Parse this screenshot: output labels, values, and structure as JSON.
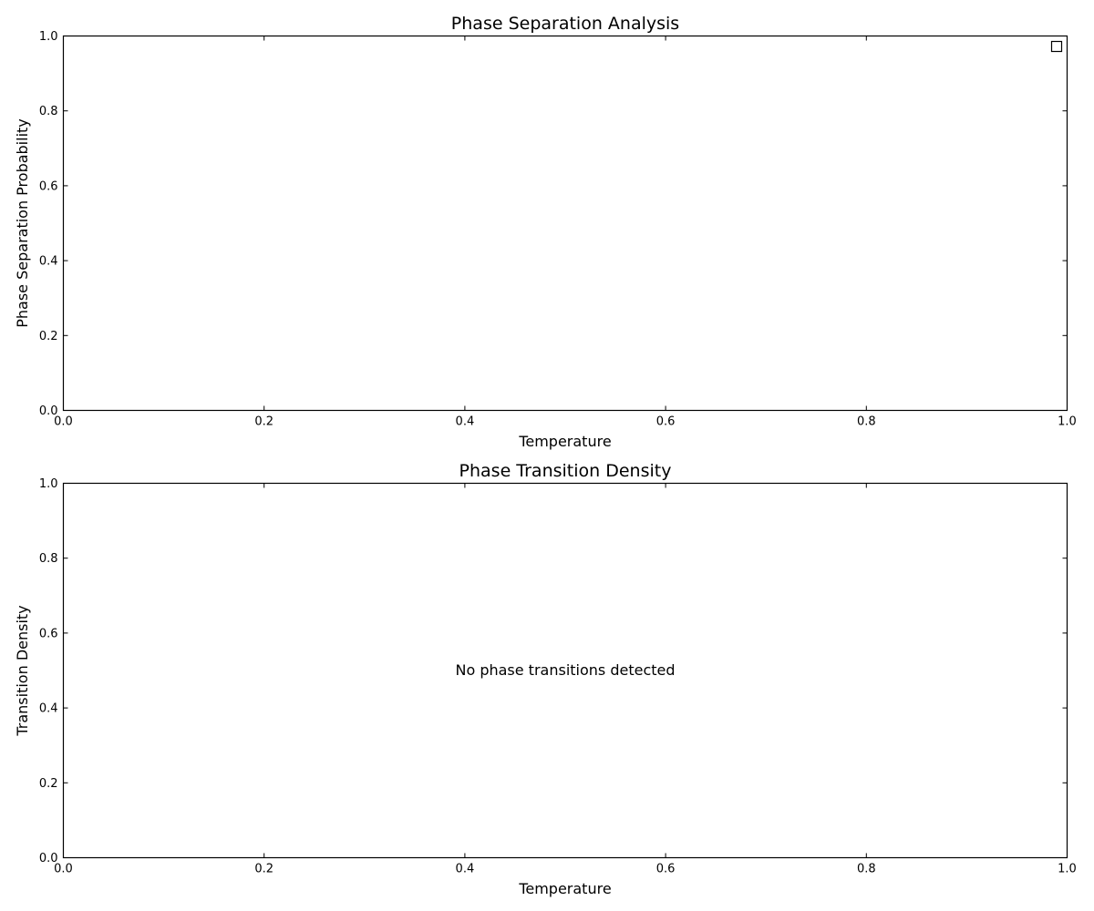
{
  "chart_data": [
    {
      "type": "line",
      "title": "Phase Separation Analysis",
      "xlabel": "Temperature",
      "ylabel": "Phase Separation Probability",
      "xlim": [
        0.0,
        1.0
      ],
      "ylim": [
        0.0,
        1.0
      ],
      "xticks": [
        0.0,
        0.2,
        0.4,
        0.6,
        0.8,
        1.0
      ],
      "yticks": [
        0.0,
        0.2,
        0.4,
        0.6,
        0.8,
        1.0
      ],
      "xtick_labels": [
        "0.0",
        "0.2",
        "0.4",
        "0.6",
        "0.8",
        "1.0"
      ],
      "ytick_labels": [
        "0.0",
        "0.2",
        "0.4",
        "0.6",
        "0.8",
        "1.0"
      ],
      "series": [],
      "legend": {
        "position": "top-right",
        "entries": []
      },
      "grid": false
    },
    {
      "type": "line",
      "title": "Phase Transition Density",
      "xlabel": "Temperature",
      "ylabel": "Transition Density",
      "xlim": [
        0.0,
        1.0
      ],
      "ylim": [
        0.0,
        1.0
      ],
      "xticks": [
        0.0,
        0.2,
        0.4,
        0.6,
        0.8,
        1.0
      ],
      "yticks": [
        0.0,
        0.2,
        0.4,
        0.6,
        0.8,
        1.0
      ],
      "xtick_labels": [
        "0.0",
        "0.2",
        "0.4",
        "0.6",
        "0.8",
        "1.0"
      ],
      "ytick_labels": [
        "0.0",
        "0.2",
        "0.4",
        "0.6",
        "0.8",
        "1.0"
      ],
      "series": [],
      "annotations": [
        {
          "text": "No phase transitions detected",
          "x": 0.5,
          "y": 0.5
        }
      ],
      "grid": false
    }
  ],
  "colors": {
    "axes": "#000000",
    "background": "#ffffff"
  }
}
